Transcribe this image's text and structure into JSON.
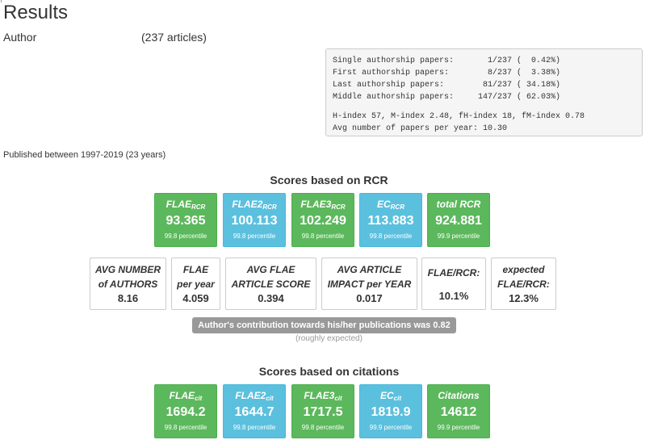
{
  "header": {
    "title": "Results",
    "author_label": "Author",
    "article_count": "(237 articles)"
  },
  "stats": {
    "lines": [
      "Single authorship papers:       1/237 (  0.42%)",
      "First authorship papers:        8/237 (  3.38%)",
      "Last authorship papers:        81/237 ( 34.18%)",
      "Middle authorship papers:     147/237 ( 62.03%)"
    ],
    "index_line": "H-index 57, M-index 2.48, fH-index 18, fM-index 0.78",
    "avg_line": "Avg number of papers per year: 10.30"
  },
  "published": "Published between 1997-2019 (23 years)",
  "rcr": {
    "title": "Scores based on RCR",
    "tiles": [
      {
        "label": "FLAE",
        "sub": "RCR",
        "value": "93.365",
        "percentile": "99.8 percentile",
        "color": "#5cb85c"
      },
      {
        "label": "FLAE2",
        "sub": "RCR",
        "value": "100.113",
        "percentile": "99.8 percentile",
        "color": "#5bc0de"
      },
      {
        "label": "FLAE3",
        "sub": "RCR",
        "value": "102.249",
        "percentile": "99.8 percentile",
        "color": "#5cb85c"
      },
      {
        "label": "EC",
        "sub": "RCR",
        "value": "113.883",
        "percentile": "99.8 percentile",
        "color": "#5bc0de"
      },
      {
        "label": "total RCR",
        "sub": "",
        "value": "924.881",
        "percentile": "99.9 percentile",
        "color": "#5cb85c"
      }
    ],
    "metrics": [
      {
        "line1": "AVG NUMBER",
        "line2": "of AUTHORS",
        "value": "8.16"
      },
      {
        "line1": "FLAE",
        "line2": "per year",
        "value": "4.059"
      },
      {
        "line1": "AVG FLAE",
        "line2": "ARTICLE SCORE",
        "value": "0.394"
      },
      {
        "line1": "AVG ARTICLE",
        "line2": "IMPACT per YEAR",
        "value": "0.017"
      },
      {
        "line1": "FLAE/RCR:",
        "line2": "",
        "value": "10.1%"
      },
      {
        "line1": "expected",
        "line2": "FLAE/RCR:",
        "value": "12.3%"
      }
    ],
    "contribution": "Author's contribution towards his/her publications was 0.82",
    "contribution_note": "(roughly expected)"
  },
  "cit": {
    "title": "Scores based on citations",
    "tiles": [
      {
        "label": "FLAE",
        "sub": "cit",
        "value": "1694.2",
        "percentile": "99.8 percentile",
        "color": "#5cb85c"
      },
      {
        "label": "FLAE2",
        "sub": "cit",
        "value": "1644.7",
        "percentile": "99.8 percentile",
        "color": "#5bc0de"
      },
      {
        "label": "FLAE3",
        "sub": "cit",
        "value": "1717.5",
        "percentile": "99.8 percentile",
        "color": "#5cb85c"
      },
      {
        "label": "EC",
        "sub": "cit",
        "value": "1819.9",
        "percentile": "99.9 percentile",
        "color": "#5bc0de"
      },
      {
        "label": "Citations",
        "sub": "",
        "value": "14612",
        "percentile": "99.9 percentile",
        "color": "#5cb85c"
      }
    ]
  }
}
